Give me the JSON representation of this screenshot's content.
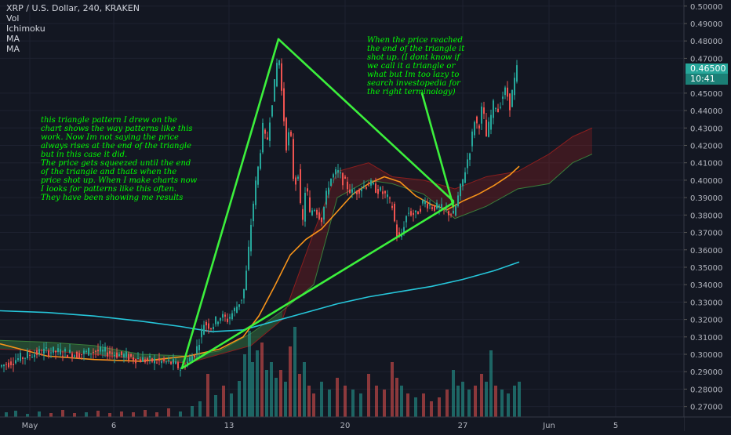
{
  "header": {
    "symbol": "XRP / U.S. Dollar, 240, KRAKEN",
    "indicators": [
      "Vol",
      "Ichimoku",
      "MA",
      "MA"
    ]
  },
  "annotations": {
    "note_left": "this triangle pattern I drew on the\nchart shows the way patterns like this\nwork. Now Im not saying the price\nalways rises at the end of the triangle\nbut in this case it did.\nThe price gets squeezed until the end\nof the triangle and thats when the\nprice shot up. When I make charts now\nI looks for patterns like this often.\nThey have been showing me results",
    "note_right": "When the price reached\nthe end of the triangle it\nshot up. (I dont know if\nwe call it a triangle or\nwhat but Im too lazy to\nsearch investopedia for\nthe right terminology)"
  },
  "price_tags": {
    "last_price": "0.46500",
    "countdown": "10:41"
  },
  "colors": {
    "background": "#131722",
    "up": "#26a69a",
    "down": "#ef5350",
    "ma_fast": "#f7931a",
    "ma_slow": "#26c6da",
    "triangle": "#3cf03c",
    "annotation": "#00ff00",
    "axis_text": "#b2b5be"
  },
  "chart_data": {
    "type": "candlestick",
    "yaxis": {
      "ticks": [
        "0.50000",
        "0.49000",
        "0.48000",
        "0.47000",
        "0.45000",
        "0.44000",
        "0.43000",
        "0.42000",
        "0.41000",
        "0.40000",
        "0.39000",
        "0.38000",
        "0.37000",
        "0.36000",
        "0.35000",
        "0.34000",
        "0.33000",
        "0.32000",
        "0.31000",
        "0.30000",
        "0.29000",
        "0.28000",
        "0.27000"
      ],
      "ylim": [
        0.264,
        0.5035
      ]
    },
    "xaxis": {
      "labels": [
        "May",
        "6",
        "13",
        "20",
        "27",
        "Jun",
        "5"
      ]
    },
    "price_path": [
      [
        0,
        0.293
      ],
      [
        20,
        0.297
      ],
      [
        40,
        0.3
      ],
      [
        60,
        0.302
      ],
      [
        80,
        0.301
      ],
      [
        100,
        0.3
      ],
      [
        120,
        0.302
      ],
      [
        140,
        0.301
      ],
      [
        160,
        0.299
      ],
      [
        180,
        0.297
      ],
      [
        200,
        0.296
      ],
      [
        220,
        0.295
      ],
      [
        230,
        0.292
      ],
      [
        240,
        0.296
      ],
      [
        250,
        0.302
      ],
      [
        260,
        0.318
      ],
      [
        270,
        0.316
      ],
      [
        280,
        0.322
      ],
      [
        290,
        0.32
      ],
      [
        300,
        0.326
      ],
      [
        310,
        0.334
      ],
      [
        315,
        0.35
      ],
      [
        320,
        0.375
      ],
      [
        325,
        0.395
      ],
      [
        330,
        0.41
      ],
      [
        335,
        0.43
      ],
      [
        340,
        0.42
      ],
      [
        345,
        0.44
      ],
      [
        350,
        0.455
      ],
      [
        355,
        0.475
      ],
      [
        360,
        0.445
      ],
      [
        365,
        0.42
      ],
      [
        370,
        0.43
      ],
      [
        375,
        0.395
      ],
      [
        380,
        0.405
      ],
      [
        385,
        0.37
      ],
      [
        390,
        0.4
      ],
      [
        395,
        0.38
      ],
      [
        400,
        0.385
      ],
      [
        410,
        0.378
      ],
      [
        420,
        0.4
      ],
      [
        430,
        0.405
      ],
      [
        440,
        0.398
      ],
      [
        450,
        0.392
      ],
      [
        460,
        0.396
      ],
      [
        470,
        0.398
      ],
      [
        480,
        0.395
      ],
      [
        490,
        0.392
      ],
      [
        500,
        0.385
      ],
      [
        505,
        0.37
      ],
      [
        510,
        0.365
      ],
      [
        515,
        0.375
      ],
      [
        520,
        0.382
      ],
      [
        530,
        0.38
      ],
      [
        540,
        0.388
      ],
      [
        550,
        0.385
      ],
      [
        560,
        0.384
      ],
      [
        570,
        0.382
      ],
      [
        578,
        0.38
      ],
      [
        585,
        0.392
      ],
      [
        590,
        0.4
      ],
      [
        595,
        0.41
      ],
      [
        600,
        0.42
      ],
      [
        605,
        0.435
      ],
      [
        610,
        0.43
      ],
      [
        615,
        0.443
      ],
      [
        620,
        0.425
      ],
      [
        625,
        0.435
      ],
      [
        630,
        0.445
      ],
      [
        635,
        0.44
      ],
      [
        640,
        0.448
      ],
      [
        645,
        0.452
      ],
      [
        650,
        0.443
      ],
      [
        655,
        0.455
      ],
      [
        660,
        0.466
      ]
    ],
    "ma_fast": [
      [
        0,
        0.306
      ],
      [
        60,
        0.299
      ],
      [
        120,
        0.297
      ],
      [
        180,
        0.296
      ],
      [
        240,
        0.299
      ],
      [
        280,
        0.303
      ],
      [
        310,
        0.31
      ],
      [
        330,
        0.322
      ],
      [
        350,
        0.339
      ],
      [
        370,
        0.357
      ],
      [
        390,
        0.366
      ],
      [
        410,
        0.372
      ],
      [
        430,
        0.382
      ],
      [
        450,
        0.392
      ],
      [
        470,
        0.398
      ],
      [
        490,
        0.402
      ],
      [
        510,
        0.399
      ],
      [
        530,
        0.391
      ],
      [
        550,
        0.386
      ],
      [
        570,
        0.383
      ],
      [
        590,
        0.388
      ],
      [
        610,
        0.392
      ],
      [
        630,
        0.397
      ],
      [
        650,
        0.403
      ],
      [
        662,
        0.408
      ]
    ],
    "ma_slow": [
      [
        0,
        0.325
      ],
      [
        60,
        0.324
      ],
      [
        120,
        0.322
      ],
      [
        180,
        0.319
      ],
      [
        230,
        0.316
      ],
      [
        270,
        0.313
      ],
      [
        310,
        0.314
      ],
      [
        350,
        0.319
      ],
      [
        390,
        0.324
      ],
      [
        430,
        0.329
      ],
      [
        470,
        0.333
      ],
      [
        510,
        0.336
      ],
      [
        550,
        0.339
      ],
      [
        590,
        0.343
      ],
      [
        630,
        0.348
      ],
      [
        662,
        0.353
      ]
    ],
    "triangle": [
      {
        "x1": 232,
        "y1": 0.292,
        "x2": 355,
        "y2": 0.481
      },
      {
        "x1": 355,
        "y1": 0.481,
        "x2": 578,
        "y2": 0.388
      },
      {
        "x1": 232,
        "y1": 0.292,
        "x2": 578,
        "y2": 0.387
      },
      {
        "x1": 538,
        "y1": 0.45,
        "x2": 578,
        "y2": 0.385
      }
    ],
    "cloud": [
      [
        0,
        0.308,
        0.303
      ],
      [
        60,
        0.307,
        0.302
      ],
      [
        120,
        0.305,
        0.3
      ],
      [
        180,
        0.3,
        0.297
      ],
      [
        240,
        0.299,
        0.295
      ],
      [
        280,
        0.302,
        0.3
      ],
      [
        320,
        0.312,
        0.305
      ],
      [
        360,
        0.325,
        0.32
      ],
      [
        400,
        0.34,
        0.37
      ],
      [
        430,
        0.39,
        0.405
      ],
      [
        470,
        0.4,
        0.41
      ],
      [
        500,
        0.398,
        0.402
      ],
      [
        540,
        0.392,
        0.4
      ],
      [
        580,
        0.378,
        0.395
      ],
      [
        620,
        0.385,
        0.402
      ],
      [
        660,
        0.395,
        0.405
      ],
      [
        700,
        0.398,
        0.415
      ],
      [
        730,
        0.41,
        0.425
      ],
      [
        755,
        0.415,
        0.43
      ]
    ],
    "volume": [
      [
        8,
        6
      ],
      [
        20,
        8
      ],
      [
        35,
        4
      ],
      [
        50,
        7
      ],
      [
        65,
        5
      ],
      [
        80,
        9
      ],
      [
        95,
        5
      ],
      [
        110,
        6
      ],
      [
        125,
        8
      ],
      [
        140,
        5
      ],
      [
        155,
        7
      ],
      [
        170,
        6
      ],
      [
        185,
        9
      ],
      [
        200,
        6
      ],
      [
        215,
        11
      ],
      [
        230,
        7
      ],
      [
        245,
        14
      ],
      [
        255,
        20
      ],
      [
        265,
        55
      ],
      [
        275,
        28
      ],
      [
        285,
        40
      ],
      [
        295,
        30
      ],
      [
        305,
        46
      ],
      [
        312,
        80
      ],
      [
        318,
        110
      ],
      [
        322,
        70
      ],
      [
        328,
        85
      ],
      [
        334,
        95
      ],
      [
        340,
        60
      ],
      [
        346,
        70
      ],
      [
        352,
        50
      ],
      [
        358,
        60
      ],
      [
        364,
        45
      ],
      [
        370,
        90
      ],
      [
        376,
        115
      ],
      [
        382,
        55
      ],
      [
        388,
        70
      ],
      [
        394,
        40
      ],
      [
        400,
        30
      ],
      [
        410,
        45
      ],
      [
        420,
        35
      ],
      [
        430,
        50
      ],
      [
        440,
        40
      ],
      [
        450,
        35
      ],
      [
        460,
        30
      ],
      [
        470,
        55
      ],
      [
        480,
        40
      ],
      [
        490,
        35
      ],
      [
        500,
        70
      ],
      [
        506,
        50
      ],
      [
        512,
        40
      ],
      [
        520,
        30
      ],
      [
        530,
        25
      ],
      [
        540,
        30
      ],
      [
        550,
        20
      ],
      [
        560,
        25
      ],
      [
        570,
        35
      ],
      [
        578,
        60
      ],
      [
        584,
        40
      ],
      [
        590,
        45
      ],
      [
        598,
        35
      ],
      [
        606,
        40
      ],
      [
        614,
        55
      ],
      [
        620,
        45
      ],
      [
        626,
        85
      ],
      [
        632,
        40
      ],
      [
        640,
        35
      ],
      [
        648,
        30
      ],
      [
        656,
        40
      ],
      [
        662,
        45
      ]
    ]
  }
}
